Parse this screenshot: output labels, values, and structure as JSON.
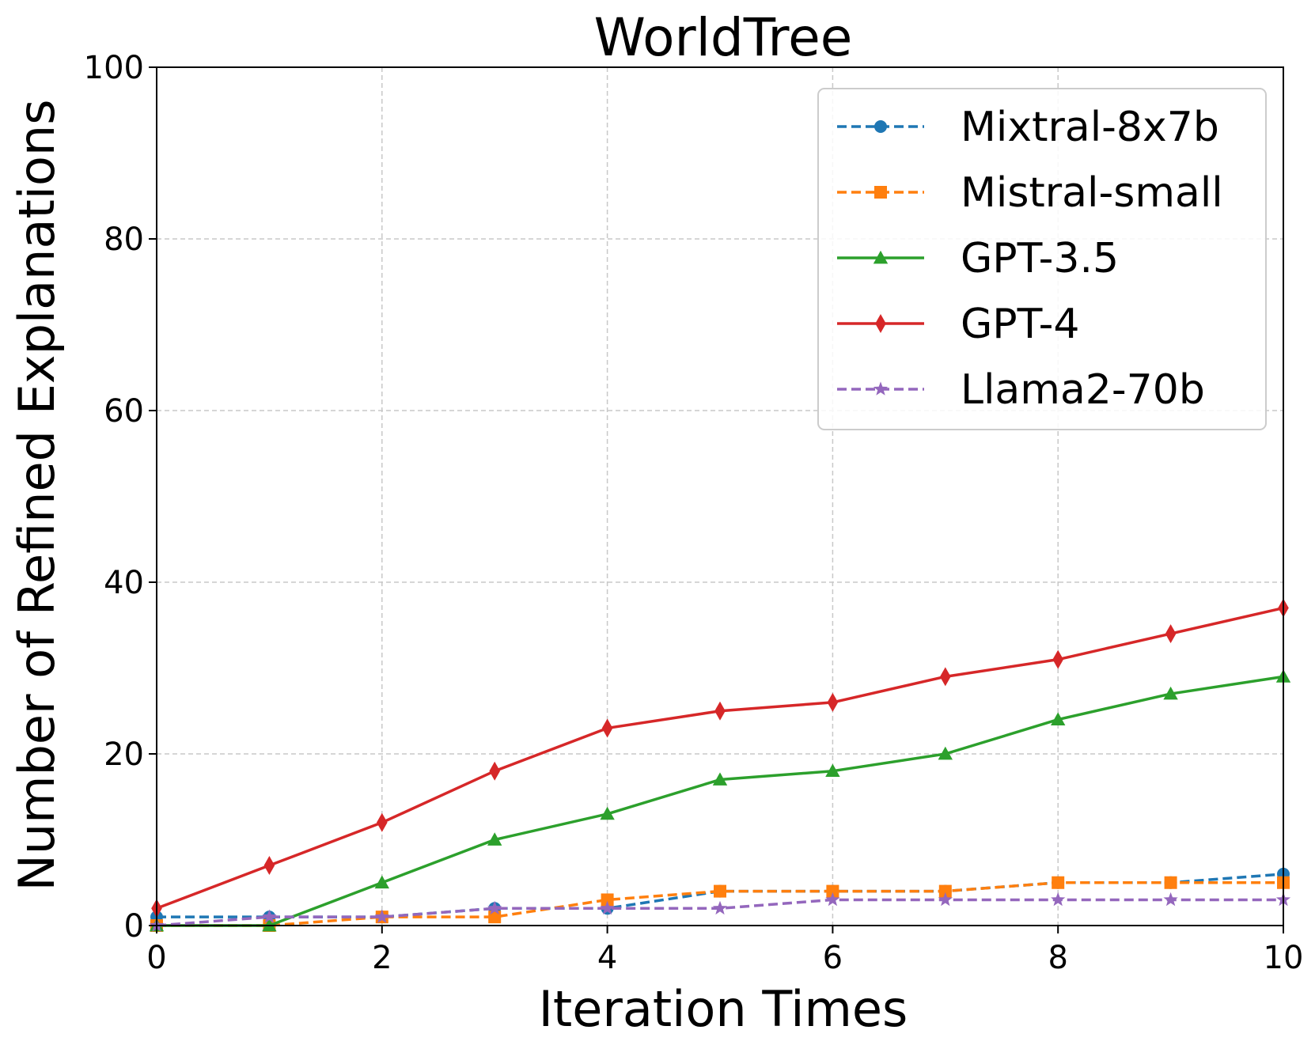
{
  "chart_data": {
    "type": "line",
    "title": "WorldTree",
    "xlabel": "Iteration Times",
    "ylabel": "Number of Refined Explanations",
    "xlim": [
      0,
      10
    ],
    "ylim": [
      0,
      100
    ],
    "xticks": [
      0,
      2,
      4,
      6,
      8,
      10
    ],
    "yticks": [
      0,
      20,
      40,
      60,
      80,
      100
    ],
    "grid": true,
    "legend_position": "top-right",
    "x": [
      0,
      1,
      2,
      3,
      4,
      5,
      6,
      7,
      8,
      9,
      10
    ],
    "series": [
      {
        "name": "Mixtral-8x7b",
        "color": "#1f77b4",
        "dash": "dashed",
        "marker": "circle",
        "values": [
          1,
          1,
          1,
          2,
          2,
          4,
          4,
          4,
          5,
          5,
          6
        ]
      },
      {
        "name": "Mistral-small",
        "color": "#ff7f0e",
        "dash": "dashed",
        "marker": "square",
        "values": [
          0,
          0,
          1,
          1,
          3,
          4,
          4,
          4,
          5,
          5,
          5
        ]
      },
      {
        "name": "GPT-3.5",
        "color": "#2ca02c",
        "dash": "solid",
        "marker": "triangle",
        "values": [
          0,
          0,
          5,
          10,
          13,
          17,
          18,
          20,
          24,
          27,
          29
        ]
      },
      {
        "name": "GPT-4",
        "color": "#d62728",
        "dash": "solid",
        "marker": "diamond",
        "values": [
          2,
          7,
          12,
          18,
          23,
          25,
          26,
          29,
          31,
          34,
          37
        ]
      },
      {
        "name": "Llama2-70b",
        "color": "#9467bd",
        "dash": "dashed",
        "marker": "star",
        "values": [
          0,
          1,
          1,
          2,
          2,
          2,
          3,
          3,
          3,
          3,
          3
        ]
      }
    ]
  }
}
